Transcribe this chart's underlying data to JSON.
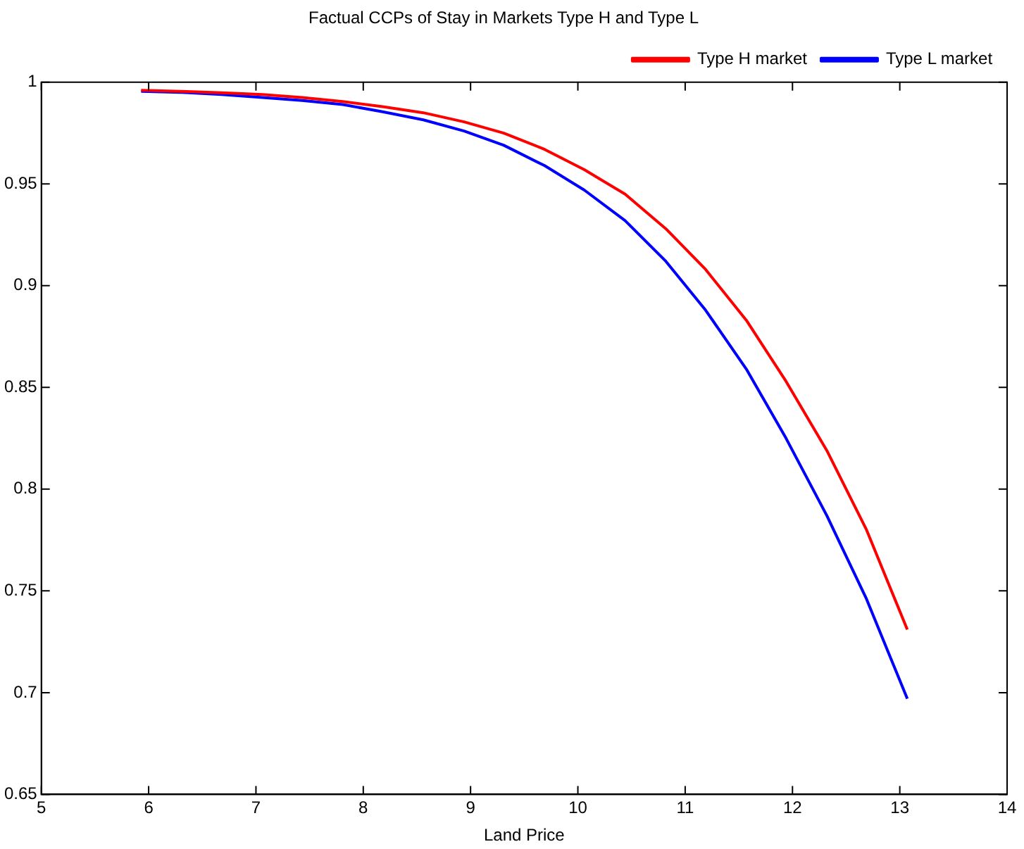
{
  "chart_data": {
    "type": "line",
    "title": "Factual CCPs of Stay in Markets Type H and Type L",
    "xlabel": "Land Price",
    "x": [
      5.93,
      6.31,
      6.68,
      7.06,
      7.43,
      7.81,
      8.18,
      8.56,
      8.94,
      9.31,
      9.69,
      10.06,
      10.44,
      10.82,
      11.19,
      11.57,
      11.94,
      12.32,
      12.69,
      13.07
    ],
    "series": [
      {
        "name": "Type H market",
        "color": "#ff0000",
        "values": [
          0.996,
          0.9955,
          0.9948,
          0.994,
          0.9925,
          0.9905,
          0.988,
          0.985,
          0.9805,
          0.975,
          0.967,
          0.957,
          0.945,
          0.928,
          0.908,
          0.883,
          0.853,
          0.819,
          0.78,
          0.731
        ]
      },
      {
        "name": "Type L market",
        "color": "#0000ff",
        "values": [
          0.9955,
          0.995,
          0.994,
          0.9925,
          0.991,
          0.989,
          0.9855,
          0.9815,
          0.976,
          0.969,
          0.959,
          0.947,
          0.932,
          0.912,
          0.888,
          0.859,
          0.825,
          0.787,
          0.746,
          0.697
        ]
      }
    ],
    "xlim": [
      5,
      14
    ],
    "xticks": [
      5,
      6,
      7,
      8,
      9,
      10,
      11,
      12,
      13,
      14
    ],
    "ylim": [
      0.65,
      1
    ],
    "yticks": [
      0.65,
      0.7,
      0.75,
      0.8,
      0.85,
      0.9,
      0.95,
      1
    ],
    "grid": false,
    "legend": "top right"
  }
}
